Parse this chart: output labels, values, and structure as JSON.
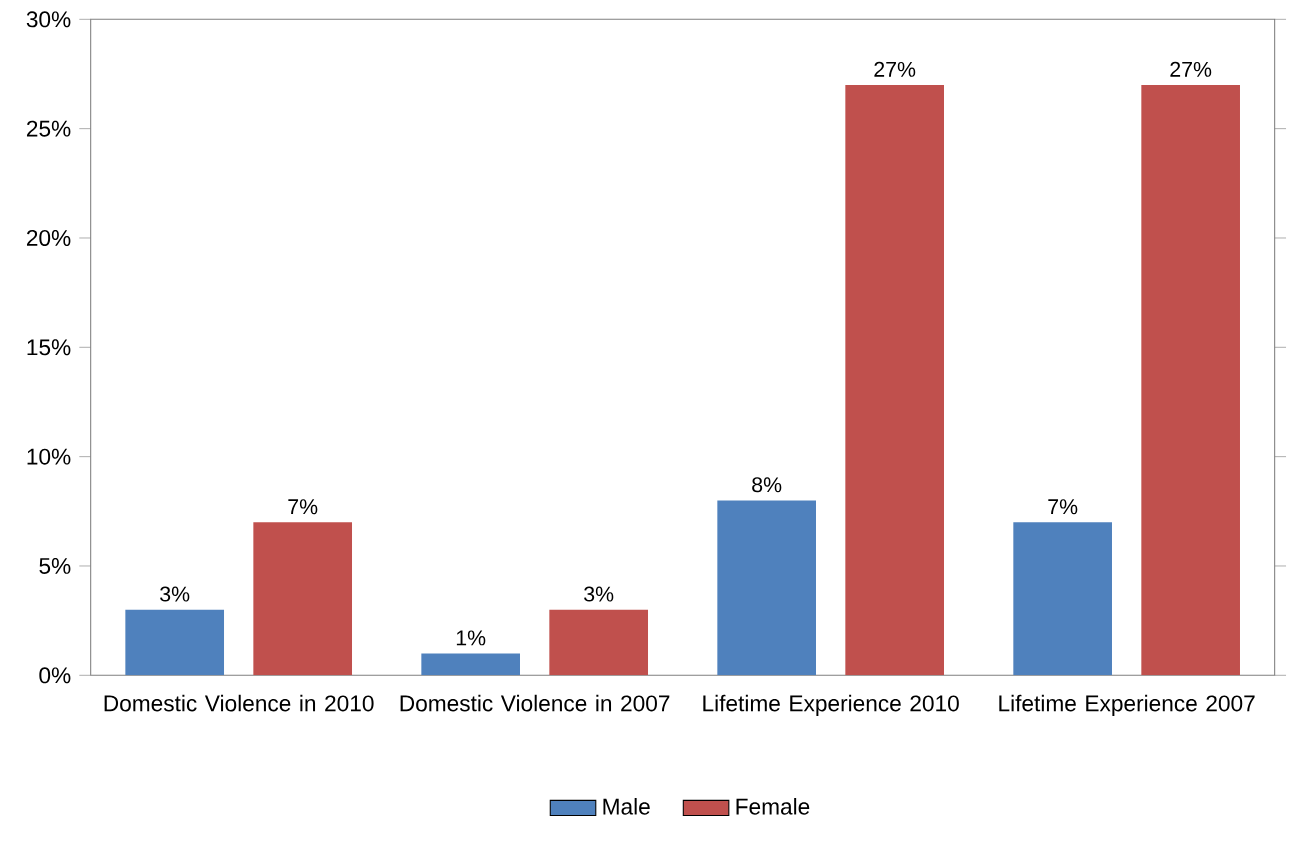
{
  "chart_data": {
    "type": "bar",
    "categories": [
      "Domestic Violence in 2010",
      "Domestic Violence in 2007",
      "Lifetime Experience 2010",
      "Lifetime Experience 2007"
    ],
    "series": [
      {
        "name": "Male",
        "color": "#4f81bd",
        "values": [
          3,
          1,
          8,
          7
        ],
        "value_labels": [
          "3%",
          "1%",
          "8%",
          "7%"
        ]
      },
      {
        "name": "Female",
        "color": "#c0504d",
        "values": [
          7,
          3,
          27,
          27
        ],
        "value_labels": [
          "7%",
          "3%",
          "27%",
          "27%"
        ]
      }
    ],
    "ylim": [
      0,
      30
    ],
    "yticks": [
      {
        "value": 0,
        "label": "0%"
      },
      {
        "value": 5,
        "label": "5%"
      },
      {
        "value": 10,
        "label": "10%"
      },
      {
        "value": 15,
        "label": "15%"
      },
      {
        "value": 20,
        "label": "20%"
      },
      {
        "value": 25,
        "label": "25%"
      },
      {
        "value": 30,
        "label": "30%"
      }
    ],
    "grid": false,
    "legend": "bottom"
  }
}
